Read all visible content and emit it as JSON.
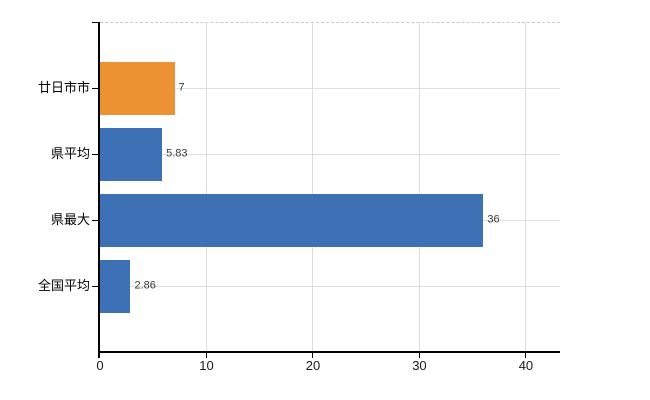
{
  "chart_data": {
    "type": "bar",
    "orientation": "horizontal",
    "title": "",
    "categories": [
      "廿日市市",
      "県平均",
      "県最大",
      "全国平均"
    ],
    "values": [
      7,
      5.83,
      36,
      2.86
    ],
    "value_labels": [
      "7",
      "5.83",
      "36",
      "2.86"
    ],
    "bar_colors": [
      "#ED9233",
      "#3D70B4",
      "#3D70B4",
      "#3D70B4"
    ],
    "x_tick_values": [
      0,
      10,
      20,
      30,
      40
    ],
    "x_tick_labels": [
      "0",
      "10",
      "20",
      "30",
      "40"
    ],
    "xlim": [
      0,
      43.2
    ],
    "grid": true,
    "legend": false,
    "axis_color": "#000000",
    "grid_color": "#dcdcdc",
    "value_label_color": "#3a3a3a",
    "background_color": "#ffffff"
  }
}
